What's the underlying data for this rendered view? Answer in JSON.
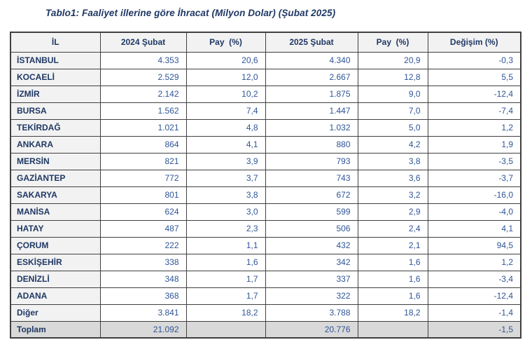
{
  "title": "Tablo1: Faaliyet illerine göre İhracat (Milyon Dolar) (Şubat 2025)",
  "colors": {
    "title_and_label_text": "#1F3864",
    "number_text": "#2F5597",
    "table_border": "#404040",
    "header_and_label_bg": "#F2F2F2",
    "total_row_bg": "#D9D9D9",
    "data_cell_bg": "#FFFFFF"
  },
  "table": {
    "columns": [
      "İL",
      "2024 Şubat",
      "Pay  (%)",
      "2025 Şubat",
      "Pay  (%)",
      "Değişim (%)"
    ],
    "rows": [
      [
        "İSTANBUL",
        "4.353",
        "20,6",
        "4.340",
        "20,9",
        "-0,3"
      ],
      [
        "KOCAELİ",
        "2.529",
        "12,0",
        "2.667",
        "12,8",
        "5,5"
      ],
      [
        "İZMİR",
        "2.142",
        "10,2",
        "1.875",
        "9,0",
        "-12,4"
      ],
      [
        "BURSA",
        "1.562",
        "7,4",
        "1.447",
        "7,0",
        "-7,4"
      ],
      [
        "TEKİRDAĞ",
        "1.021",
        "4,8",
        "1.032",
        "5,0",
        "1,2"
      ],
      [
        "ANKARA",
        "864",
        "4,1",
        "880",
        "4,2",
        "1,9"
      ],
      [
        "MERSİN",
        "821",
        "3,9",
        "793",
        "3,8",
        "-3,5"
      ],
      [
        "GAZİANTEP",
        "772",
        "3,7",
        "743",
        "3,6",
        "-3,7"
      ],
      [
        "SAKARYA",
        "801",
        "3,8",
        "672",
        "3,2",
        "-16,0"
      ],
      [
        "MANİSA",
        "624",
        "3,0",
        "599",
        "2,9",
        "-4,0"
      ],
      [
        "HATAY",
        "487",
        "2,3",
        "506",
        "2,4",
        "4,1"
      ],
      [
        "ÇORUM",
        "222",
        "1,1",
        "432",
        "2,1",
        "94,5"
      ],
      [
        "ESKİŞEHİR",
        "338",
        "1,6",
        "342",
        "1,6",
        "1,2"
      ],
      [
        "DENİZLİ",
        "348",
        "1,7",
        "337",
        "1,6",
        "-3,4"
      ],
      [
        "ADANA",
        "368",
        "1,7",
        "322",
        "1,6",
        "-12,4"
      ],
      [
        "Diğer",
        "3.841",
        "18,2",
        "3.788",
        "18,2",
        "-1,4"
      ]
    ],
    "total_row": [
      "Toplam",
      "21.092",
      "",
      "20.776",
      "",
      "-1,5"
    ]
  },
  "chart_data": {
    "type": "table",
    "title": "Tablo1: Faaliyet illerine göre İhracat (Milyon Dolar) (Şubat 2025)",
    "categories": [
      "İSTANBUL",
      "KOCAELİ",
      "İZMİR",
      "BURSA",
      "TEKİRDAĞ",
      "ANKARA",
      "MERSİN",
      "GAZİANTEP",
      "SAKARYA",
      "MANİSA",
      "HATAY",
      "ÇORUM",
      "ESKİŞEHİR",
      "DENİZLİ",
      "ADANA",
      "Diğer",
      "Toplam"
    ],
    "series": [
      {
        "name": "2024 Şubat",
        "values": [
          4353,
          2529,
          2142,
          1562,
          1021,
          864,
          821,
          772,
          801,
          624,
          487,
          222,
          338,
          348,
          368,
          3841,
          21092
        ]
      },
      {
        "name": "Pay (%) 2024",
        "values": [
          20.6,
          12.0,
          10.2,
          7.4,
          4.8,
          4.1,
          3.9,
          3.7,
          3.8,
          3.0,
          2.3,
          1.1,
          1.6,
          1.7,
          1.7,
          18.2,
          null
        ]
      },
      {
        "name": "2025 Şubat",
        "values": [
          4340,
          2667,
          1875,
          1447,
          1032,
          880,
          793,
          743,
          672,
          599,
          506,
          432,
          342,
          337,
          322,
          3788,
          20776
        ]
      },
      {
        "name": "Pay (%) 2025",
        "values": [
          20.9,
          12.8,
          9.0,
          7.0,
          5.0,
          4.2,
          3.8,
          3.6,
          3.2,
          2.9,
          2.4,
          2.1,
          1.6,
          1.6,
          1.6,
          18.2,
          null
        ]
      },
      {
        "name": "Değişim (%)",
        "values": [
          -0.3,
          5.5,
          -12.4,
          -7.4,
          1.2,
          1.9,
          -3.5,
          -3.7,
          -16.0,
          -4.0,
          4.1,
          94.5,
          1.2,
          -3.4,
          -12.4,
          -1.4,
          -1.5
        ]
      }
    ]
  }
}
